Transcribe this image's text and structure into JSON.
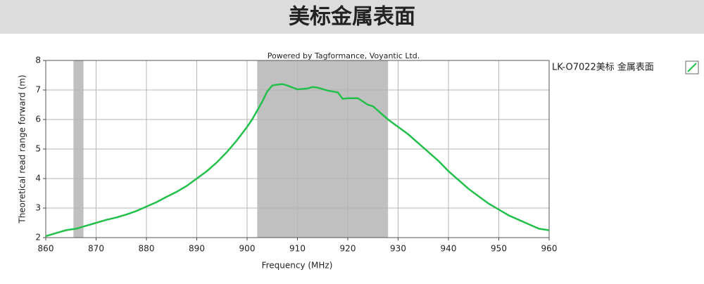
{
  "chart_data": {
    "type": "line",
    "title": "美标金属表面",
    "annotation": "Powered by Tagformance, Voyantic Ltd.",
    "x_label": "Frequency (MHz)",
    "y_label": "Theoretical read range forward (m)",
    "xlim": [
      860,
      960
    ],
    "xticks": [
      860,
      870,
      880,
      890,
      900,
      910,
      920,
      930,
      940,
      950,
      960
    ],
    "ylim": [
      2,
      8
    ],
    "yticks": [
      2,
      3,
      4,
      5,
      6,
      7,
      8
    ],
    "grid": true,
    "legend": "right",
    "shaded_ranges": [
      [
        865.5,
        867.5
      ],
      [
        902,
        928
      ]
    ],
    "shade_color": "#c0c0c0",
    "series": [
      {
        "name": "LK-O7022美标 金属表面",
        "color": "#22c04a",
        "x": [
          860,
          862,
          864,
          866,
          868,
          870,
          872,
          874,
          876,
          878,
          880,
          882,
          884,
          886,
          888,
          890,
          892,
          894,
          896,
          898,
          900,
          901,
          902,
          903,
          904,
          905,
          906,
          907,
          908,
          910,
          912,
          913,
          914,
          916,
          918,
          919,
          920,
          922,
          924,
          925,
          926,
          928,
          930,
          932,
          934,
          936,
          938,
          940,
          942,
          944,
          946,
          948,
          950,
          952,
          954,
          956,
          958,
          960
        ],
        "values": [
          2.05,
          2.15,
          2.25,
          2.3,
          2.4,
          2.5,
          2.6,
          2.68,
          2.78,
          2.9,
          3.05,
          3.2,
          3.38,
          3.55,
          3.75,
          4.0,
          4.25,
          4.55,
          4.9,
          5.3,
          5.75,
          6.0,
          6.3,
          6.6,
          6.95,
          7.15,
          7.18,
          7.2,
          7.15,
          7.02,
          7.05,
          7.1,
          7.08,
          6.98,
          6.92,
          6.7,
          6.72,
          6.72,
          6.5,
          6.45,
          6.3,
          6.0,
          5.75,
          5.5,
          5.2,
          4.9,
          4.6,
          4.25,
          3.95,
          3.65,
          3.4,
          3.15,
          2.95,
          2.75,
          2.6,
          2.45,
          2.3,
          2.25
        ]
      }
    ]
  }
}
